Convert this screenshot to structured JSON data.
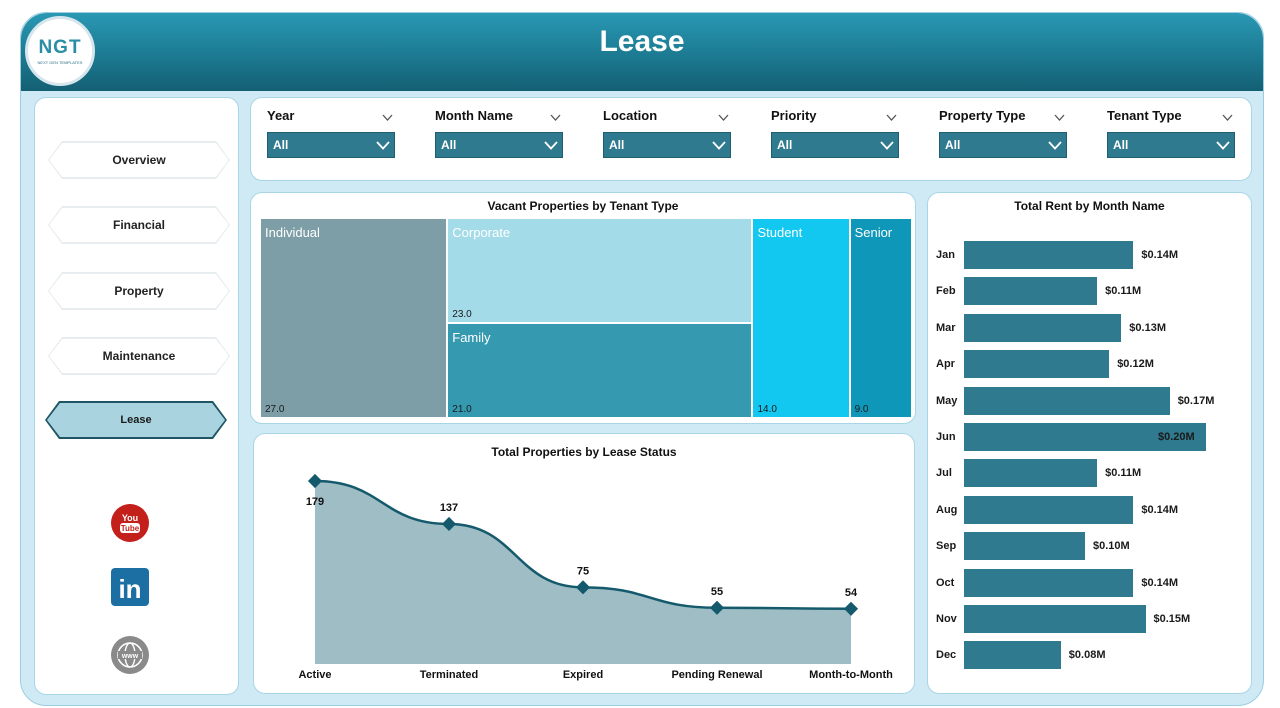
{
  "header": {
    "title": "Lease"
  },
  "logo": {
    "text": "NGT",
    "subtitle": "NEXT GEN TEMPLATES"
  },
  "sidebar": {
    "items": [
      {
        "label": "Overview"
      },
      {
        "label": "Financial"
      },
      {
        "label": "Property"
      },
      {
        "label": "Maintenance"
      },
      {
        "label": "Lease",
        "active": true
      }
    ],
    "social": [
      {
        "icon": "youtube-icon",
        "text": "You Tube",
        "color": "#c4201b"
      },
      {
        "icon": "linkedin-icon",
        "text": "in",
        "color": "#1b6fa3"
      },
      {
        "icon": "globe-icon",
        "text": "www",
        "color": "#8a8a8a"
      }
    ]
  },
  "filters": [
    {
      "label": "Year",
      "value": "All"
    },
    {
      "label": "Month Name",
      "value": "All"
    },
    {
      "label": "Location",
      "value": "All"
    },
    {
      "label": "Priority",
      "value": "All"
    },
    {
      "label": "Property Type",
      "value": "All"
    },
    {
      "label": "Tenant Type",
      "value": "All"
    }
  ],
  "colors": {
    "accent": "#2f7a8e",
    "header": "#1c7a92",
    "background": "#cfeaf4"
  },
  "chart_data": [
    {
      "type": "treemap",
      "title": "Vacant Properties by Tenant Type",
      "categories": [
        "Individual",
        "Corporate",
        "Family",
        "Student",
        "Senior"
      ],
      "values": [
        27.0,
        23.0,
        21.0,
        14.0,
        9.0
      ],
      "value_labels": [
        "27.0",
        "23.0",
        "21.0",
        "14.0",
        "9.0"
      ],
      "colors": [
        "#7d9ea6",
        "#a4dbe8",
        "#3599b0",
        "#12c8f0",
        "#0e97b8"
      ]
    },
    {
      "type": "area",
      "title": "Total Properties by Lease Status",
      "categories": [
        "Active",
        "Terminated",
        "Expired",
        "Pending Renewal",
        "Month-to-Month"
      ],
      "values": [
        179,
        137,
        75,
        55,
        54
      ],
      "ylim": [
        0,
        179
      ],
      "line_color": "#145a6c",
      "fill_color": "#9ebdc4"
    },
    {
      "type": "bar",
      "orientation": "horizontal",
      "title": "Total Rent by Month Name",
      "categories": [
        "Jan",
        "Feb",
        "Mar",
        "Apr",
        "May",
        "Jun",
        "Jul",
        "Aug",
        "Sep",
        "Oct",
        "Nov",
        "Dec"
      ],
      "values": [
        0.14,
        0.11,
        0.13,
        0.12,
        0.17,
        0.2,
        0.11,
        0.14,
        0.1,
        0.14,
        0.15,
        0.08
      ],
      "value_labels": [
        "$0.14M",
        "$0.11M",
        "$0.13M",
        "$0.12M",
        "$0.17M",
        "$0.20M",
        "$0.11M",
        "$0.14M",
        "$0.10M",
        "$0.14M",
        "$0.15M",
        "$0.08M"
      ],
      "xlim": [
        0,
        0.2
      ],
      "color": "#2f7a8e"
    }
  ]
}
